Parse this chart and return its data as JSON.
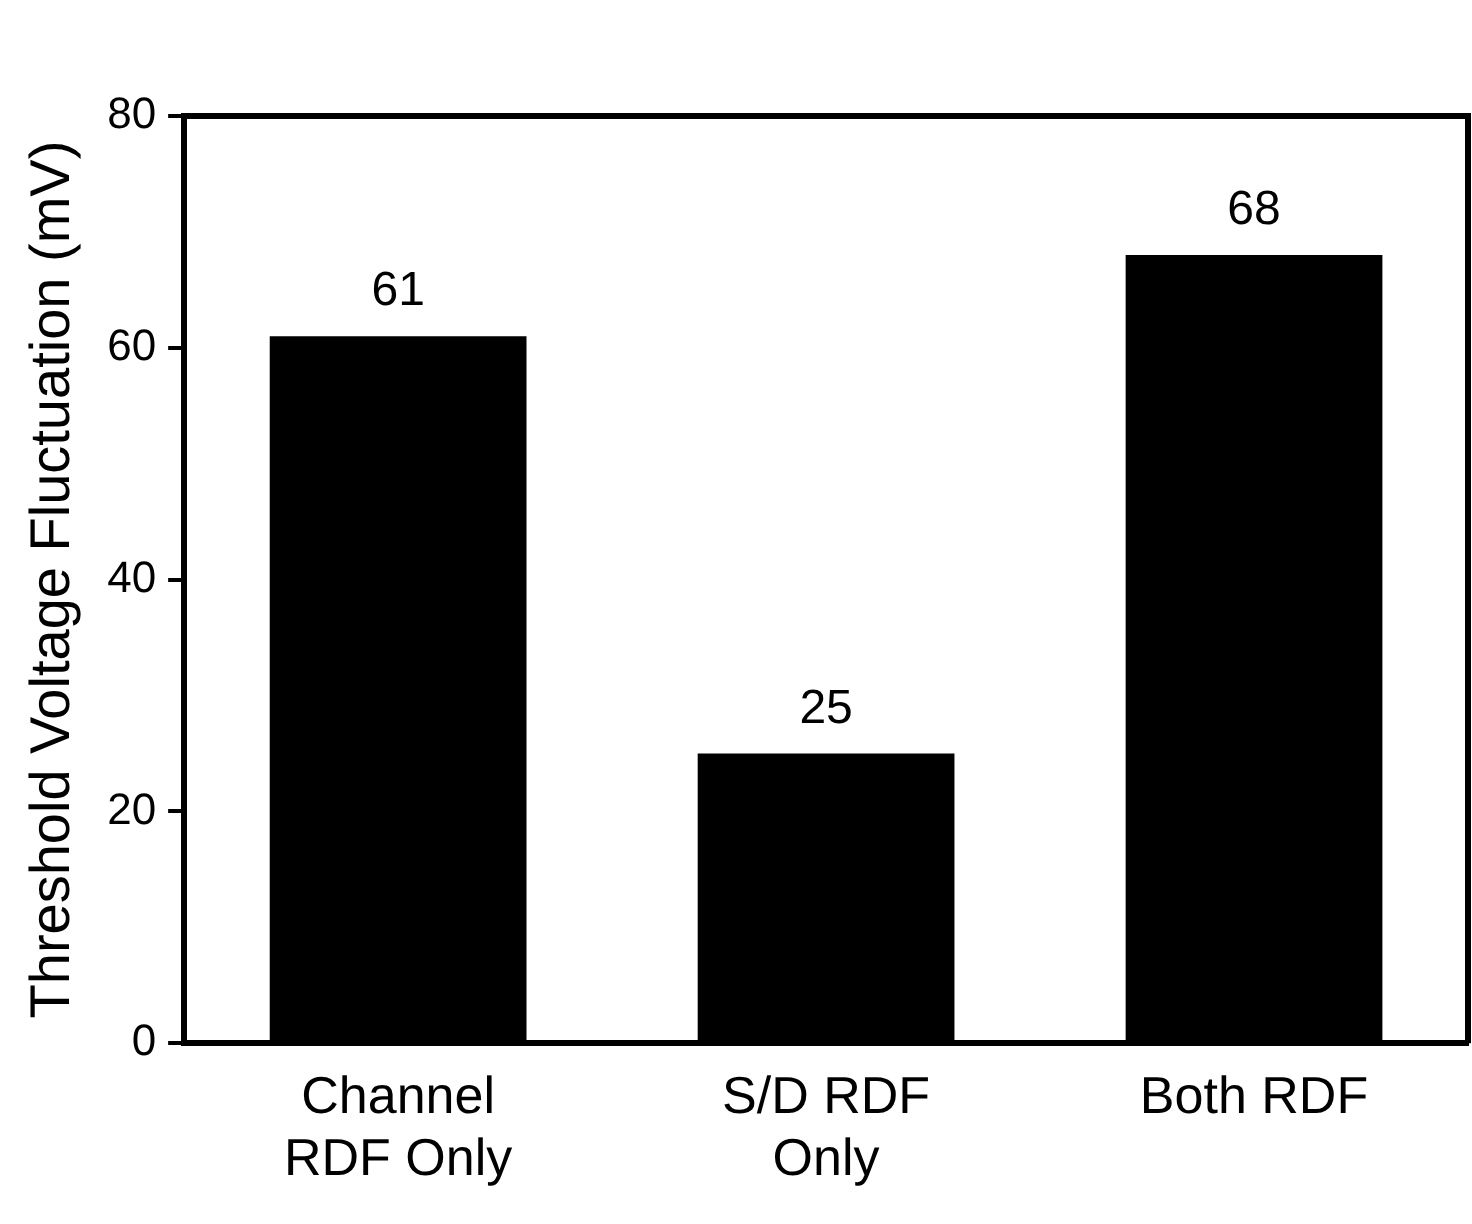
{
  "chart_data": {
    "type": "bar",
    "ylabel": "Threshold Voltage Fluctuation (mV)",
    "categories": [
      "Channel RDF Only",
      "S/D RDF Only",
      "Both RDF"
    ],
    "values": [
      61,
      25,
      68
    ],
    "color": "#000000",
    "ylim": [
      0,
      80
    ],
    "yticks": [
      0,
      20,
      40,
      60,
      80
    ],
    "data_labels": true,
    "grid": false,
    "legend": false
  }
}
